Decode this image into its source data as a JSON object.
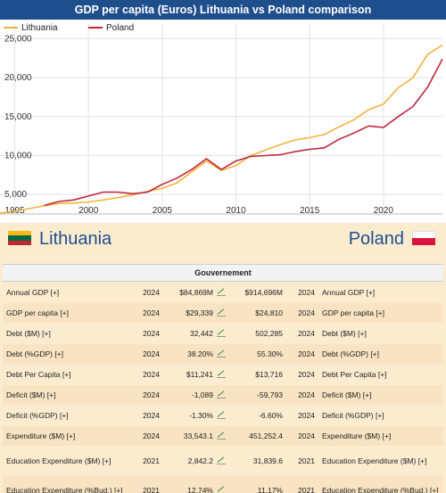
{
  "chart_data": {
    "type": "line",
    "title": "GDP per capita (Euros) Lithuania vs Poland comparison",
    "xlabel": "",
    "ylabel": "",
    "xlim": [
      1994,
      2024
    ],
    "ylim": [
      2500,
      27000
    ],
    "x_ticks": [
      "1995",
      "2000",
      "2005",
      "2010",
      "2015",
      "2020"
    ],
    "y_ticks": [
      "5,000",
      "10,000",
      "15,000",
      "20,000",
      "25,000"
    ],
    "grid": true,
    "legend_position": "top-left",
    "series": [
      {
        "name": "Lithuania",
        "color": "#f0b33c",
        "points": [
          [
            1994,
            2600
          ],
          [
            1995,
            2850
          ],
          [
            1996,
            3200
          ],
          [
            1997,
            3550
          ],
          [
            1998,
            3850
          ],
          [
            1999,
            3900
          ],
          [
            2000,
            4050
          ],
          [
            2001,
            4300
          ],
          [
            2002,
            4600
          ],
          [
            2003,
            4950
          ],
          [
            2004,
            5400
          ],
          [
            2005,
            5800
          ],
          [
            2006,
            6500
          ],
          [
            2007,
            7900
          ],
          [
            2008,
            9300
          ],
          [
            2009,
            8100
          ],
          [
            2010,
            8700
          ],
          [
            2011,
            10000
          ],
          [
            2012,
            10700
          ],
          [
            2013,
            11400
          ],
          [
            2014,
            12000
          ],
          [
            2015,
            12300
          ],
          [
            2016,
            12700
          ],
          [
            2017,
            13700
          ],
          [
            2018,
            14600
          ],
          [
            2019,
            15900
          ],
          [
            2020,
            16600
          ],
          [
            2021,
            18700
          ],
          [
            2022,
            20000
          ],
          [
            2023,
            23000
          ],
          [
            2024,
            24200
          ]
        ]
      },
      {
        "name": "Poland",
        "color": "#c0263a",
        "points": [
          [
            1997,
            3600
          ],
          [
            1998,
            4100
          ],
          [
            1999,
            4300
          ],
          [
            2000,
            4800
          ],
          [
            2001,
            5300
          ],
          [
            2002,
            5300
          ],
          [
            2003,
            5100
          ],
          [
            2004,
            5300
          ],
          [
            2005,
            6300
          ],
          [
            2006,
            7100
          ],
          [
            2007,
            8200
          ],
          [
            2008,
            9600
          ],
          [
            2009,
            8200
          ],
          [
            2010,
            9300
          ],
          [
            2011,
            9900
          ],
          [
            2012,
            10000
          ],
          [
            2013,
            10100
          ],
          [
            2014,
            10500
          ],
          [
            2015,
            10800
          ],
          [
            2016,
            11000
          ],
          [
            2017,
            12100
          ],
          [
            2018,
            12900
          ],
          [
            2019,
            13800
          ],
          [
            2020,
            13600
          ],
          [
            2021,
            15000
          ],
          [
            2022,
            16300
          ],
          [
            2023,
            18800
          ],
          [
            2024,
            22400
          ]
        ]
      }
    ]
  },
  "countries": {
    "left": "Lithuania",
    "right": "Poland"
  },
  "table": {
    "section_title": "Gouvernement",
    "rows": [
      {
        "label": "Annual GDP [+]",
        "year_left": "2024",
        "value_left": "$84,869M",
        "value_right": "$914,696M",
        "year_right": "2024",
        "label_right": "Annual GDP [+]"
      },
      {
        "label": "GDP per capita [+]",
        "year_left": "2024",
        "value_left": "$29,339",
        "value_right": "$24,810",
        "year_right": "2024",
        "label_right": "GDP per capita [+]"
      },
      {
        "label": "Debt ($M) [+]",
        "year_left": "2024",
        "value_left": "32,442",
        "value_right": "502,285",
        "year_right": "2024",
        "label_right": "Debt ($M) [+]"
      },
      {
        "label": "Debt (%GDP) [+]",
        "year_left": "2024",
        "value_left": "38.20%",
        "value_right": "55.30%",
        "year_right": "2024",
        "label_right": "Debt (%GDP) [+]"
      },
      {
        "label": "Debt Per Capita [+]",
        "year_left": "2024",
        "value_left": "$11,241",
        "value_right": "$13,716",
        "year_right": "2024",
        "label_right": "Debt Per Capita [+]"
      },
      {
        "label": "Deficit ($M) [+]",
        "year_left": "2024",
        "value_left": "-1,089",
        "value_right": "-59,793",
        "year_right": "2024",
        "label_right": "Deficit ($M) [+]"
      },
      {
        "label": "Deficit (%GDP) [+]",
        "year_left": "2024",
        "value_left": "-1.30%",
        "value_right": "-6.60%",
        "year_right": "2024",
        "label_right": "Deficit (%GDP) [+]"
      },
      {
        "label": "Expenditure ($M) [+]",
        "year_left": "2024",
        "value_left": "33,543.1",
        "value_right": "451,252.4",
        "year_right": "2024",
        "label_right": "Expenditure ($M) [+]"
      },
      {
        "label": "Education Expenditure ($M) [+]",
        "year_left": "2021",
        "value_left": "2,842.2",
        "value_right": "31,839.6",
        "year_right": "2021",
        "label_right": "Education Expenditure ($M) [+]"
      },
      {
        "label": "Education Expenditure (%Bud.) [+]",
        "year_left": "2021",
        "value_left": "12.74%",
        "value_right": "11.17%",
        "year_right": "2021",
        "label_right": "Education Expenditure (%Bud.) [+]"
      }
    ]
  }
}
